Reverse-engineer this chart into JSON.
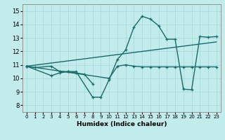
{
  "xlabel": "Humidex (Indice chaleur)",
  "xlim": [
    -0.5,
    23.5
  ],
  "ylim": [
    7.5,
    15.5
  ],
  "xticks": [
    0,
    1,
    2,
    3,
    4,
    5,
    6,
    7,
    8,
    9,
    10,
    11,
    12,
    13,
    14,
    15,
    16,
    17,
    18,
    19,
    20,
    21,
    22,
    23
  ],
  "yticks": [
    8,
    9,
    10,
    11,
    12,
    13,
    14,
    15
  ],
  "bg_color": "#c2ebeb",
  "line_color": "#1a6b6b",
  "grid_color": "#aadada",
  "series": [
    {
      "x": [
        0,
        1,
        3,
        4,
        5,
        6,
        8,
        9,
        10,
        11,
        12,
        13,
        14,
        15,
        16,
        17,
        18,
        19,
        20,
        21,
        22,
        23
      ],
      "y": [
        10.9,
        10.8,
        10.9,
        10.5,
        10.5,
        10.5,
        8.6,
        8.6,
        9.9,
        11.4,
        12.1,
        13.8,
        14.6,
        14.4,
        13.9,
        12.9,
        12.9,
        9.2,
        9.15,
        13.1,
        13.05,
        13.1
      ]
    },
    {
      "x": [
        0,
        3,
        4,
        5,
        6,
        7,
        8
      ],
      "y": [
        10.9,
        10.2,
        10.4,
        10.5,
        10.4,
        10.3,
        9.6
      ]
    },
    {
      "x": [
        0,
        10,
        11,
        12,
        13,
        14,
        15,
        16,
        17,
        18,
        19,
        20,
        21,
        22,
        23
      ],
      "y": [
        10.9,
        10.0,
        10.9,
        11.0,
        10.9,
        10.85,
        10.85,
        10.85,
        10.85,
        10.85,
        10.85,
        10.85,
        10.85,
        10.85,
        10.85
      ]
    }
  ],
  "linewidth": 1.0,
  "markersize": 3.5
}
